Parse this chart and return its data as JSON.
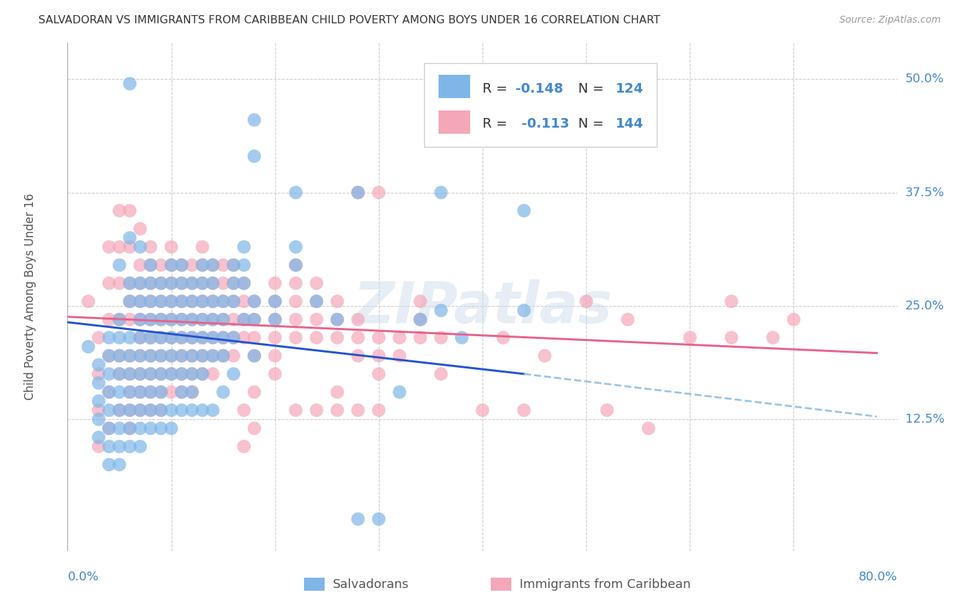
{
  "title": "SALVADORAN VS IMMIGRANTS FROM CARIBBEAN CHILD POVERTY AMONG BOYS UNDER 16 CORRELATION CHART",
  "source": "Source: ZipAtlas.com",
  "ylabel": "Child Poverty Among Boys Under 16",
  "ytick_labels": [
    "12.5%",
    "25.0%",
    "37.5%",
    "50.0%"
  ],
  "ytick_values": [
    0.125,
    0.25,
    0.375,
    0.5
  ],
  "xtick_values": [
    0.0,
    0.1,
    0.2,
    0.3,
    0.4,
    0.5,
    0.6,
    0.7,
    0.8
  ],
  "xlim": [
    0.0,
    0.8
  ],
  "ylim": [
    -0.02,
    0.54
  ],
  "salvadoran_color": "#7EB6E8",
  "caribbean_color": "#F4A7B9",
  "trend_blue_solid_color": "#2255CC",
  "trend_blue_dash_color": "#99C4E8",
  "trend_pink_color": "#E8638C",
  "R_salvadoran": -0.148,
  "N_salvadoran": 124,
  "R_caribbean": -0.113,
  "N_caribbean": 144,
  "watermark": "ZIPatlas",
  "bg_color": "#FFFFFF",
  "grid_color": "#CCCCCC",
  "axis_label_color": "#4488CC",
  "blue_trend_x0": 0.0,
  "blue_trend_y0": 0.232,
  "blue_trend_x_solid_end": 0.44,
  "blue_trend_y_solid_end": 0.175,
  "blue_trend_x_dash_end": 0.78,
  "blue_trend_y_dash_end": 0.128,
  "pink_trend_x0": 0.0,
  "pink_trend_y0": 0.238,
  "pink_trend_x_end": 0.78,
  "pink_trend_y_end": 0.198,
  "salvadoran_points": [
    [
      0.02,
      0.205
    ],
    [
      0.03,
      0.185
    ],
    [
      0.03,
      0.165
    ],
    [
      0.03,
      0.145
    ],
    [
      0.03,
      0.125
    ],
    [
      0.03,
      0.105
    ],
    [
      0.04,
      0.215
    ],
    [
      0.04,
      0.195
    ],
    [
      0.04,
      0.175
    ],
    [
      0.04,
      0.155
    ],
    [
      0.04,
      0.135
    ],
    [
      0.04,
      0.115
    ],
    [
      0.04,
      0.095
    ],
    [
      0.04,
      0.075
    ],
    [
      0.05,
      0.295
    ],
    [
      0.05,
      0.235
    ],
    [
      0.05,
      0.215
    ],
    [
      0.05,
      0.195
    ],
    [
      0.05,
      0.175
    ],
    [
      0.05,
      0.155
    ],
    [
      0.05,
      0.135
    ],
    [
      0.05,
      0.115
    ],
    [
      0.05,
      0.095
    ],
    [
      0.05,
      0.075
    ],
    [
      0.06,
      0.325
    ],
    [
      0.06,
      0.275
    ],
    [
      0.06,
      0.255
    ],
    [
      0.06,
      0.215
    ],
    [
      0.06,
      0.195
    ],
    [
      0.06,
      0.175
    ],
    [
      0.06,
      0.155
    ],
    [
      0.06,
      0.135
    ],
    [
      0.06,
      0.115
    ],
    [
      0.06,
      0.095
    ],
    [
      0.07,
      0.315
    ],
    [
      0.07,
      0.275
    ],
    [
      0.07,
      0.255
    ],
    [
      0.07,
      0.235
    ],
    [
      0.07,
      0.215
    ],
    [
      0.07,
      0.195
    ],
    [
      0.07,
      0.175
    ],
    [
      0.07,
      0.155
    ],
    [
      0.07,
      0.135
    ],
    [
      0.07,
      0.115
    ],
    [
      0.07,
      0.095
    ],
    [
      0.08,
      0.295
    ],
    [
      0.08,
      0.275
    ],
    [
      0.08,
      0.255
    ],
    [
      0.08,
      0.235
    ],
    [
      0.08,
      0.215
    ],
    [
      0.08,
      0.195
    ],
    [
      0.08,
      0.175
    ],
    [
      0.08,
      0.155
    ],
    [
      0.08,
      0.135
    ],
    [
      0.08,
      0.115
    ],
    [
      0.09,
      0.275
    ],
    [
      0.09,
      0.255
    ],
    [
      0.09,
      0.235
    ],
    [
      0.09,
      0.215
    ],
    [
      0.09,
      0.195
    ],
    [
      0.09,
      0.175
    ],
    [
      0.09,
      0.155
    ],
    [
      0.09,
      0.135
    ],
    [
      0.09,
      0.115
    ],
    [
      0.1,
      0.295
    ],
    [
      0.1,
      0.275
    ],
    [
      0.1,
      0.255
    ],
    [
      0.1,
      0.235
    ],
    [
      0.1,
      0.215
    ],
    [
      0.1,
      0.195
    ],
    [
      0.1,
      0.175
    ],
    [
      0.1,
      0.135
    ],
    [
      0.1,
      0.115
    ],
    [
      0.11,
      0.295
    ],
    [
      0.11,
      0.275
    ],
    [
      0.11,
      0.255
    ],
    [
      0.11,
      0.235
    ],
    [
      0.11,
      0.215
    ],
    [
      0.11,
      0.195
    ],
    [
      0.11,
      0.175
    ],
    [
      0.11,
      0.155
    ],
    [
      0.11,
      0.135
    ],
    [
      0.12,
      0.275
    ],
    [
      0.12,
      0.255
    ],
    [
      0.12,
      0.235
    ],
    [
      0.12,
      0.215
    ],
    [
      0.12,
      0.195
    ],
    [
      0.12,
      0.175
    ],
    [
      0.12,
      0.155
    ],
    [
      0.12,
      0.135
    ],
    [
      0.13,
      0.295
    ],
    [
      0.13,
      0.275
    ],
    [
      0.13,
      0.255
    ],
    [
      0.13,
      0.235
    ],
    [
      0.13,
      0.215
    ],
    [
      0.13,
      0.195
    ],
    [
      0.13,
      0.175
    ],
    [
      0.13,
      0.135
    ],
    [
      0.14,
      0.295
    ],
    [
      0.14,
      0.275
    ],
    [
      0.14,
      0.255
    ],
    [
      0.14,
      0.235
    ],
    [
      0.14,
      0.215
    ],
    [
      0.14,
      0.195
    ],
    [
      0.14,
      0.135
    ],
    [
      0.15,
      0.255
    ],
    [
      0.15,
      0.235
    ],
    [
      0.15,
      0.215
    ],
    [
      0.15,
      0.195
    ],
    [
      0.15,
      0.155
    ],
    [
      0.16,
      0.295
    ],
    [
      0.16,
      0.275
    ],
    [
      0.16,
      0.255
    ],
    [
      0.16,
      0.215
    ],
    [
      0.16,
      0.175
    ],
    [
      0.17,
      0.315
    ],
    [
      0.17,
      0.295
    ],
    [
      0.17,
      0.275
    ],
    [
      0.17,
      0.235
    ],
    [
      0.18,
      0.255
    ],
    [
      0.18,
      0.235
    ],
    [
      0.18,
      0.195
    ],
    [
      0.2,
      0.255
    ],
    [
      0.2,
      0.235
    ],
    [
      0.18,
      0.455
    ],
    [
      0.18,
      0.415
    ],
    [
      0.06,
      0.495
    ],
    [
      0.22,
      0.375
    ],
    [
      0.22,
      0.315
    ],
    [
      0.22,
      0.295
    ],
    [
      0.24,
      0.255
    ],
    [
      0.26,
      0.235
    ],
    [
      0.28,
      0.375
    ],
    [
      0.28,
      0.015
    ],
    [
      0.3,
      0.015
    ],
    [
      0.32,
      0.155
    ],
    [
      0.34,
      0.235
    ],
    [
      0.36,
      0.375
    ],
    [
      0.36,
      0.245
    ],
    [
      0.38,
      0.215
    ],
    [
      0.44,
      0.355
    ],
    [
      0.44,
      0.245
    ]
  ],
  "caribbean_points": [
    [
      0.02,
      0.255
    ],
    [
      0.03,
      0.215
    ],
    [
      0.03,
      0.175
    ],
    [
      0.03,
      0.135
    ],
    [
      0.03,
      0.095
    ],
    [
      0.04,
      0.315
    ],
    [
      0.04,
      0.275
    ],
    [
      0.04,
      0.235
    ],
    [
      0.04,
      0.195
    ],
    [
      0.04,
      0.155
    ],
    [
      0.04,
      0.115
    ],
    [
      0.05,
      0.355
    ],
    [
      0.05,
      0.315
    ],
    [
      0.05,
      0.275
    ],
    [
      0.05,
      0.235
    ],
    [
      0.05,
      0.195
    ],
    [
      0.05,
      0.175
    ],
    [
      0.05,
      0.135
    ],
    [
      0.06,
      0.355
    ],
    [
      0.06,
      0.315
    ],
    [
      0.06,
      0.275
    ],
    [
      0.06,
      0.255
    ],
    [
      0.06,
      0.235
    ],
    [
      0.06,
      0.195
    ],
    [
      0.06,
      0.175
    ],
    [
      0.06,
      0.155
    ],
    [
      0.06,
      0.135
    ],
    [
      0.06,
      0.115
    ],
    [
      0.07,
      0.335
    ],
    [
      0.07,
      0.295
    ],
    [
      0.07,
      0.275
    ],
    [
      0.07,
      0.255
    ],
    [
      0.07,
      0.235
    ],
    [
      0.07,
      0.215
    ],
    [
      0.07,
      0.195
    ],
    [
      0.07,
      0.175
    ],
    [
      0.07,
      0.155
    ],
    [
      0.07,
      0.135
    ],
    [
      0.08,
      0.315
    ],
    [
      0.08,
      0.295
    ],
    [
      0.08,
      0.275
    ],
    [
      0.08,
      0.255
    ],
    [
      0.08,
      0.235
    ],
    [
      0.08,
      0.215
    ],
    [
      0.08,
      0.195
    ],
    [
      0.08,
      0.175
    ],
    [
      0.08,
      0.155
    ],
    [
      0.08,
      0.135
    ],
    [
      0.09,
      0.295
    ],
    [
      0.09,
      0.275
    ],
    [
      0.09,
      0.255
    ],
    [
      0.09,
      0.235
    ],
    [
      0.09,
      0.215
    ],
    [
      0.09,
      0.195
    ],
    [
      0.09,
      0.175
    ],
    [
      0.09,
      0.155
    ],
    [
      0.09,
      0.135
    ],
    [
      0.1,
      0.315
    ],
    [
      0.1,
      0.295
    ],
    [
      0.1,
      0.275
    ],
    [
      0.1,
      0.255
    ],
    [
      0.1,
      0.235
    ],
    [
      0.1,
      0.215
    ],
    [
      0.1,
      0.195
    ],
    [
      0.1,
      0.175
    ],
    [
      0.1,
      0.155
    ],
    [
      0.11,
      0.295
    ],
    [
      0.11,
      0.275
    ],
    [
      0.11,
      0.255
    ],
    [
      0.11,
      0.235
    ],
    [
      0.11,
      0.215
    ],
    [
      0.11,
      0.195
    ],
    [
      0.11,
      0.175
    ],
    [
      0.11,
      0.155
    ],
    [
      0.12,
      0.295
    ],
    [
      0.12,
      0.275
    ],
    [
      0.12,
      0.255
    ],
    [
      0.12,
      0.235
    ],
    [
      0.12,
      0.215
    ],
    [
      0.12,
      0.195
    ],
    [
      0.12,
      0.175
    ],
    [
      0.12,
      0.155
    ],
    [
      0.13,
      0.315
    ],
    [
      0.13,
      0.295
    ],
    [
      0.13,
      0.275
    ],
    [
      0.13,
      0.255
    ],
    [
      0.13,
      0.235
    ],
    [
      0.13,
      0.215
    ],
    [
      0.13,
      0.195
    ],
    [
      0.13,
      0.175
    ],
    [
      0.14,
      0.295
    ],
    [
      0.14,
      0.275
    ],
    [
      0.14,
      0.255
    ],
    [
      0.14,
      0.235
    ],
    [
      0.14,
      0.215
    ],
    [
      0.14,
      0.195
    ],
    [
      0.14,
      0.175
    ],
    [
      0.15,
      0.295
    ],
    [
      0.15,
      0.275
    ],
    [
      0.15,
      0.255
    ],
    [
      0.15,
      0.235
    ],
    [
      0.15,
      0.215
    ],
    [
      0.15,
      0.195
    ],
    [
      0.16,
      0.295
    ],
    [
      0.16,
      0.275
    ],
    [
      0.16,
      0.255
    ],
    [
      0.16,
      0.235
    ],
    [
      0.16,
      0.215
    ],
    [
      0.16,
      0.195
    ],
    [
      0.17,
      0.275
    ],
    [
      0.17,
      0.255
    ],
    [
      0.17,
      0.235
    ],
    [
      0.17,
      0.215
    ],
    [
      0.17,
      0.135
    ],
    [
      0.17,
      0.095
    ],
    [
      0.18,
      0.255
    ],
    [
      0.18,
      0.235
    ],
    [
      0.18,
      0.215
    ],
    [
      0.18,
      0.195
    ],
    [
      0.18,
      0.155
    ],
    [
      0.18,
      0.115
    ],
    [
      0.2,
      0.275
    ],
    [
      0.2,
      0.255
    ],
    [
      0.2,
      0.235
    ],
    [
      0.2,
      0.215
    ],
    [
      0.2,
      0.195
    ],
    [
      0.2,
      0.175
    ],
    [
      0.22,
      0.295
    ],
    [
      0.22,
      0.275
    ],
    [
      0.22,
      0.255
    ],
    [
      0.22,
      0.235
    ],
    [
      0.22,
      0.215
    ],
    [
      0.22,
      0.135
    ],
    [
      0.24,
      0.275
    ],
    [
      0.24,
      0.255
    ],
    [
      0.24,
      0.235
    ],
    [
      0.24,
      0.215
    ],
    [
      0.24,
      0.135
    ],
    [
      0.26,
      0.255
    ],
    [
      0.26,
      0.235
    ],
    [
      0.26,
      0.215
    ],
    [
      0.26,
      0.155
    ],
    [
      0.26,
      0.135
    ],
    [
      0.28,
      0.235
    ],
    [
      0.28,
      0.215
    ],
    [
      0.28,
      0.195
    ],
    [
      0.28,
      0.135
    ],
    [
      0.3,
      0.215
    ],
    [
      0.3,
      0.195
    ],
    [
      0.3,
      0.175
    ],
    [
      0.3,
      0.135
    ],
    [
      0.32,
      0.215
    ],
    [
      0.32,
      0.195
    ],
    [
      0.34,
      0.255
    ],
    [
      0.34,
      0.235
    ],
    [
      0.34,
      0.215
    ],
    [
      0.36,
      0.215
    ],
    [
      0.36,
      0.175
    ],
    [
      0.4,
      0.135
    ],
    [
      0.44,
      0.135
    ],
    [
      0.5,
      0.255
    ],
    [
      0.54,
      0.235
    ],
    [
      0.6,
      0.215
    ],
    [
      0.64,
      0.255
    ],
    [
      0.64,
      0.215
    ],
    [
      0.68,
      0.215
    ],
    [
      0.7,
      0.235
    ],
    [
      0.28,
      0.375
    ],
    [
      0.3,
      0.375
    ],
    [
      0.42,
      0.215
    ],
    [
      0.46,
      0.195
    ],
    [
      0.52,
      0.135
    ],
    [
      0.56,
      0.115
    ]
  ]
}
